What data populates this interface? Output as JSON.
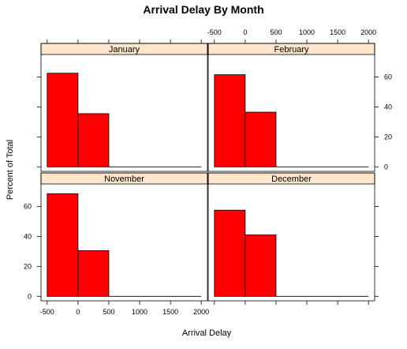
{
  "chart_data": {
    "type": "bar",
    "title": "Arrival Delay By Month",
    "xlabel": "Arrival Delay",
    "ylabel": "Percent of Total",
    "xlim": [
      -600,
      2100
    ],
    "ylim": [
      -3,
      75
    ],
    "x_ticks": [
      -500,
      0,
      500,
      1000,
      1500,
      2000
    ],
    "y_ticks": [
      0,
      20,
      40,
      60
    ],
    "bar_color": "#ff0000",
    "strip_color": "#ffe5cc",
    "bin_edges": [
      -500,
      0,
      500
    ],
    "panels": [
      {
        "name": "January",
        "values": [
          62.5,
          35.5
        ]
      },
      {
        "name": "February",
        "values": [
          61.5,
          36.5
        ]
      },
      {
        "name": "November",
        "values": [
          68.5,
          30.5
        ]
      },
      {
        "name": "December",
        "values": [
          57.5,
          41.0
        ]
      }
    ]
  }
}
